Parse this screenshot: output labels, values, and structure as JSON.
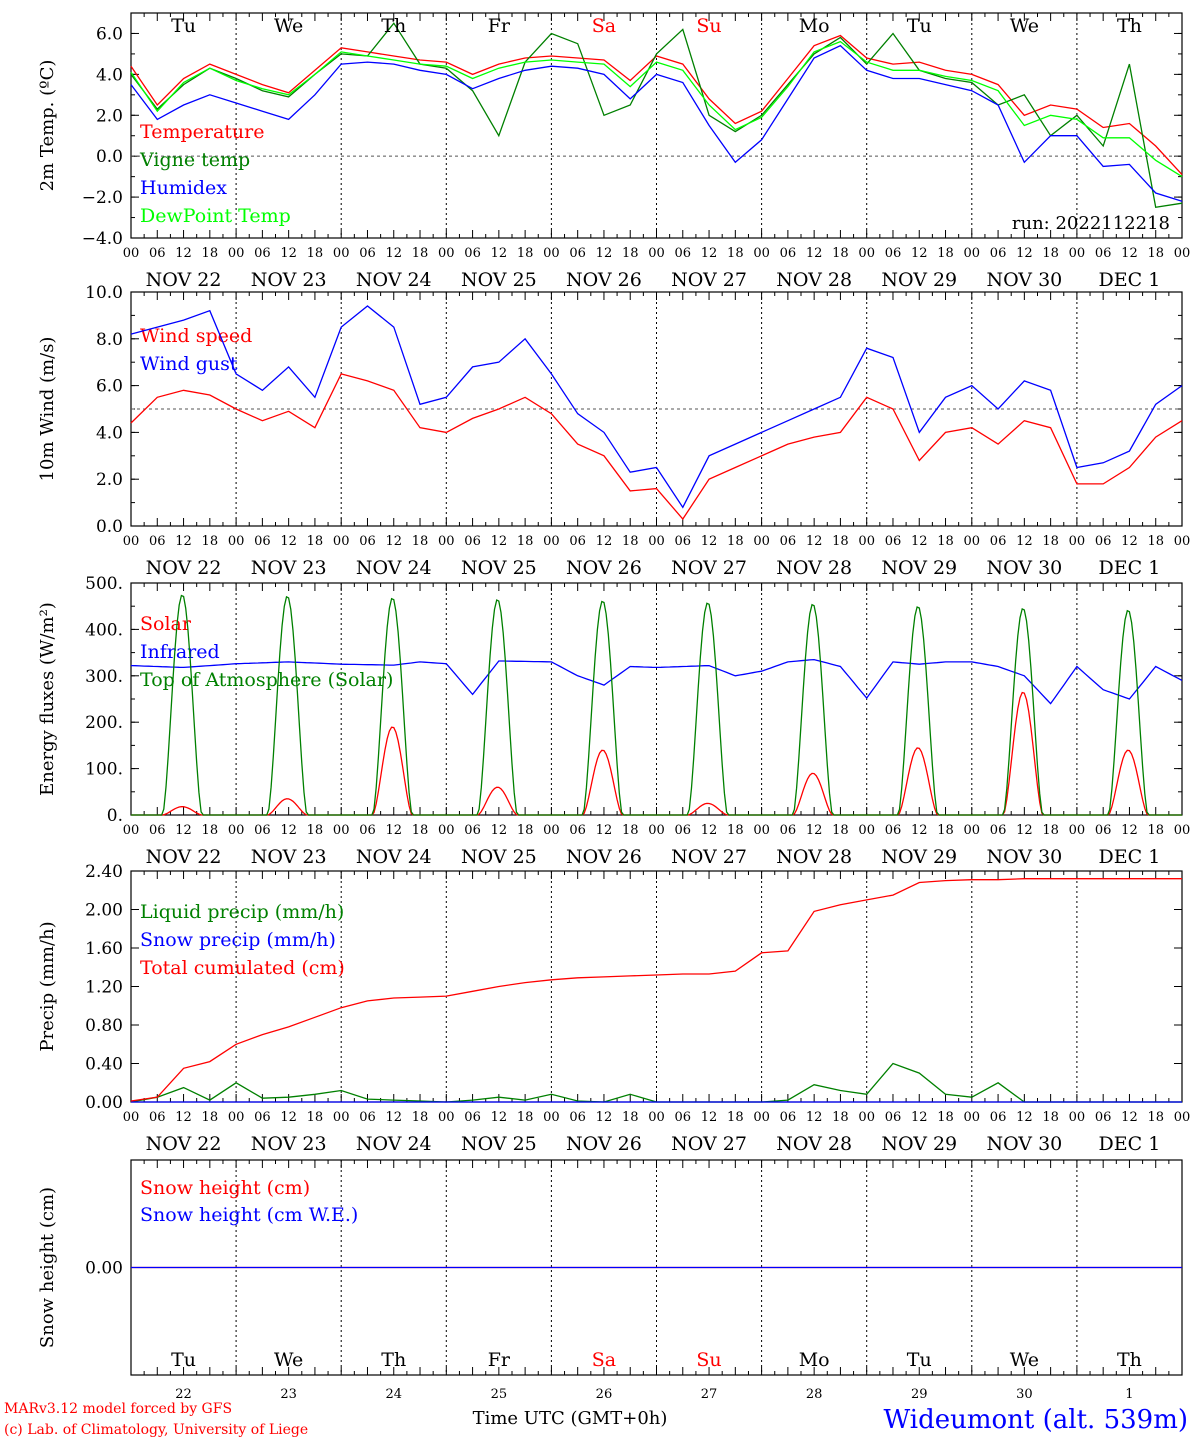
{
  "chart_data": [
    {
      "type": "line",
      "ylabel": "2m Temp. (ºC)",
      "ylim": [
        -4,
        7
      ],
      "yticks": [
        -4,
        -2,
        0,
        2,
        4,
        6
      ],
      "ytick_labels": [
        "−4.0",
        "−2.0",
        "0.0",
        "2.0",
        "4.0",
        "6.0"
      ],
      "dashed_ref": 0,
      "x_hours": [
        0,
        6,
        12,
        18,
        24,
        30,
        36,
        42,
        48,
        54,
        60,
        66,
        72,
        78,
        84,
        90,
        96,
        102,
        108,
        114,
        120,
        126,
        132,
        138,
        144,
        150,
        156,
        162,
        168,
        174,
        180,
        186,
        192,
        198,
        204,
        210,
        216,
        222,
        228,
        234,
        240
      ],
      "run_label": "run: 2022112218",
      "series": [
        {
          "name": "Temperature",
          "color": "#ff0000",
          "values": [
            4.4,
            2.5,
            3.8,
            4.5,
            4.0,
            3.5,
            3.1,
            4.2,
            5.3,
            5.1,
            4.9,
            4.7,
            4.6,
            4.0,
            4.5,
            4.8,
            4.9,
            4.8,
            4.7,
            3.7,
            4.9,
            4.5,
            2.8,
            1.6,
            2.2,
            3.8,
            5.4,
            5.9,
            4.8,
            4.5,
            4.6,
            4.2,
            4.0,
            3.5,
            2.0,
            2.5,
            2.3,
            1.4,
            1.6,
            0.5,
            -0.9
          ]
        },
        {
          "name": "Vigne temp",
          "color": "#008000",
          "values": [
            4.0,
            2.3,
            3.5,
            4.3,
            3.8,
            3.2,
            2.9,
            4.0,
            5.0,
            4.9,
            6.5,
            4.5,
            4.3,
            3.2,
            1.0,
            4.6,
            6.0,
            5.5,
            2.0,
            2.5,
            5.0,
            6.2,
            2.0,
            1.2,
            2.0,
            3.5,
            5.0,
            5.8,
            4.5,
            6.0,
            4.2,
            3.8,
            3.6,
            2.5,
            3.0,
            1.0,
            2.0,
            0.5,
            4.5,
            -2.5,
            -2.3
          ]
        },
        {
          "name": "Humidex",
          "color": "#0000ff",
          "values": [
            3.5,
            1.8,
            2.5,
            3.0,
            2.6,
            2.2,
            1.8,
            3.0,
            4.5,
            4.6,
            4.5,
            4.2,
            4.0,
            3.3,
            3.8,
            4.2,
            4.4,
            4.3,
            4.0,
            2.8,
            4.0,
            3.6,
            1.5,
            -0.3,
            0.8,
            2.8,
            4.8,
            5.4,
            4.2,
            3.8,
            3.8,
            3.5,
            3.2,
            2.5,
            -0.3,
            1.0,
            1.0,
            -0.5,
            -0.4,
            -1.8,
            -2.2
          ]
        },
        {
          "name": "DewPoint Temp",
          "color": "#00ff00",
          "values": [
            4.1,
            2.2,
            3.6,
            4.3,
            3.7,
            3.3,
            3.0,
            4.0,
            5.1,
            4.9,
            4.7,
            4.5,
            4.4,
            3.8,
            4.3,
            4.6,
            4.7,
            4.6,
            4.5,
            3.4,
            4.6,
            4.2,
            2.5,
            1.3,
            1.9,
            3.4,
            5.1,
            5.6,
            4.6,
            4.2,
            4.2,
            3.9,
            3.7,
            3.2,
            1.5,
            2.0,
            1.8,
            0.9,
            0.9,
            -0.2,
            -1.0
          ]
        }
      ]
    },
    {
      "type": "line",
      "ylabel": "10m Wind (m/s)",
      "ylim": [
        0,
        10
      ],
      "yticks": [
        0,
        2,
        4,
        6,
        8,
        10
      ],
      "ytick_labels": [
        "0.0",
        "2.0",
        "4.0",
        "6.0",
        "8.0",
        "10.0"
      ],
      "dashed_ref": 5,
      "x_hours": [
        0,
        6,
        12,
        18,
        24,
        30,
        36,
        42,
        48,
        54,
        60,
        66,
        72,
        78,
        84,
        90,
        96,
        102,
        108,
        114,
        120,
        126,
        132,
        138,
        144,
        150,
        156,
        162,
        168,
        174,
        180,
        186,
        192,
        198,
        204,
        210,
        216,
        222,
        228,
        234,
        240
      ],
      "series": [
        {
          "name": "Wind speed",
          "color": "#ff0000",
          "values": [
            4.4,
            5.5,
            5.8,
            5.6,
            5.0,
            4.5,
            4.9,
            4.2,
            6.5,
            6.2,
            5.8,
            4.2,
            4.0,
            4.6,
            5.0,
            5.5,
            4.8,
            3.5,
            3.0,
            1.5,
            1.6,
            0.3,
            2.0,
            2.5,
            3.0,
            3.5,
            3.8,
            4.0,
            5.5,
            5.0,
            2.8,
            4.0,
            4.2,
            3.5,
            4.5,
            4.2,
            1.8,
            1.8,
            2.5,
            3.8,
            4.5
          ]
        },
        {
          "name": "Wind gust",
          "color": "#0000ff",
          "values": [
            8.2,
            8.5,
            8.8,
            9.2,
            6.5,
            5.8,
            6.8,
            5.5,
            8.5,
            9.4,
            8.5,
            5.2,
            5.5,
            6.8,
            7.0,
            8.0,
            6.5,
            4.8,
            4.0,
            2.3,
            2.5,
            0.8,
            3.0,
            3.5,
            4.0,
            4.5,
            5.0,
            5.5,
            7.6,
            7.2,
            4.0,
            5.5,
            6.0,
            5.0,
            6.2,
            5.8,
            2.5,
            2.7,
            3.2,
            5.2,
            6.0
          ]
        }
      ]
    },
    {
      "type": "line",
      "ylabel": "Energy fluxes (W/m²)",
      "ylim": [
        0,
        500
      ],
      "yticks": [
        0,
        100,
        200,
        300,
        400,
        500
      ],
      "ytick_labels": [
        "0.",
        "100.",
        "200.",
        "300.",
        "400.",
        "500."
      ],
      "days": 10,
      "series": [
        {
          "name": "Solar",
          "color": "#ff0000",
          "daily_peak": [
            18,
            35,
            190,
            60,
            140,
            25,
            90,
            145,
            265,
            140
          ]
        },
        {
          "name": "Infrared",
          "color": "#0000ff",
          "values_hours": [
            0,
            12,
            24,
            36,
            48,
            60,
            66,
            72,
            78,
            84,
            96,
            102,
            108,
            114,
            120,
            132,
            138,
            144,
            150,
            156,
            162,
            168,
            174,
            180,
            186,
            192,
            198,
            204,
            210,
            216,
            222,
            228,
            234,
            240
          ],
          "values": [
            322,
            318,
            326,
            330,
            325,
            323,
            330,
            326,
            260,
            332,
            330,
            300,
            280,
            320,
            318,
            322,
            300,
            310,
            330,
            335,
            320,
            252,
            330,
            325,
            330,
            330,
            320,
            300,
            240,
            320,
            270,
            250,
            320,
            290
          ]
        },
        {
          "name": "Top of Atmosphere (Solar)",
          "color": "#008000",
          "daily_peak": [
            475,
            472,
            468,
            465,
            462,
            458,
            455,
            450,
            446,
            442
          ]
        }
      ]
    },
    {
      "type": "line",
      "ylabel": "Precip (mm/h)",
      "ylim": [
        0,
        2.4
      ],
      "yticks": [
        0,
        0.4,
        0.8,
        1.2,
        1.6,
        2.0,
        2.4
      ],
      "ytick_labels": [
        "0.00",
        "0.40",
        "0.80",
        "1.20",
        "1.60",
        "2.00",
        "2.40"
      ],
      "x_hours": [
        0,
        6,
        12,
        18,
        24,
        30,
        36,
        42,
        48,
        54,
        60,
        66,
        72,
        78,
        84,
        90,
        96,
        102,
        108,
        114,
        120,
        126,
        132,
        138,
        144,
        150,
        156,
        162,
        168,
        174,
        180,
        186,
        192,
        198,
        204,
        210,
        216,
        222,
        228,
        234,
        240
      ],
      "series": [
        {
          "name": "Liquid precip (mm/h)",
          "color": "#008000",
          "values": [
            0,
            0.05,
            0.15,
            0.02,
            0.2,
            0.04,
            0.05,
            0.08,
            0.12,
            0.03,
            0.02,
            0.01,
            0,
            0.02,
            0.05,
            0.02,
            0.08,
            0.01,
            0,
            0.08,
            0,
            0,
            0,
            0,
            0,
            0.02,
            0.18,
            0.12,
            0.08,
            0.4,
            0.3,
            0.08,
            0.05,
            0.2,
            0,
            0,
            0,
            0,
            0,
            0,
            0
          ]
        },
        {
          "name": "Snow precip (mm/h)",
          "color": "#0000ff",
          "values": [
            0,
            0,
            0,
            0,
            0,
            0,
            0,
            0,
            0,
            0,
            0,
            0,
            0,
            0,
            0,
            0,
            0,
            0,
            0,
            0,
            0,
            0,
            0,
            0,
            0,
            0,
            0,
            0,
            0,
            0,
            0,
            0,
            0,
            0,
            0,
            0,
            0,
            0,
            0,
            0,
            0
          ]
        },
        {
          "name": "Total cumulated (cm)",
          "color": "#ff0000",
          "values": [
            0.01,
            0.05,
            0.35,
            0.42,
            0.6,
            0.7,
            0.78,
            0.88,
            0.98,
            1.05,
            1.08,
            1.09,
            1.1,
            1.15,
            1.2,
            1.24,
            1.27,
            1.29,
            1.3,
            1.31,
            1.32,
            1.33,
            1.33,
            1.36,
            1.55,
            1.57,
            1.98,
            2.05,
            2.1,
            2.15,
            2.28,
            2.3,
            2.31,
            2.31,
            2.32,
            2.32,
            2.32,
            2.32,
            2.32,
            2.32,
            2.32
          ]
        }
      ]
    },
    {
      "type": "line",
      "ylabel": "Snow height (cm)",
      "ylim": [
        -1,
        1
      ],
      "yticks": [
        0
      ],
      "ytick_labels": [
        "0.00"
      ],
      "x_hours": [
        0,
        240
      ],
      "series": [
        {
          "name": "Snow height (cm)",
          "color": "#ff0000",
          "values": [
            0,
            0
          ]
        },
        {
          "name": "Snow height (cm W.E.)",
          "color": "#0000ff",
          "values": [
            0,
            0
          ]
        }
      ]
    }
  ],
  "x_axis": {
    "hour_ticks": [
      "00",
      "06",
      "12",
      "18"
    ],
    "end_tick": "00",
    "date_labels": [
      "NOV 22",
      "NOV 23",
      "NOV 24",
      "NOV 25",
      "NOV 26",
      "NOV 27",
      "NOV 28",
      "NOV 29",
      "NOV 30",
      "DEC  1"
    ],
    "weekdays": [
      "Tu",
      "We",
      "Th",
      "Fr",
      "Sa",
      "Su",
      "Mo",
      "Tu",
      "We",
      "Th"
    ],
    "weekday_colors": [
      "#000000",
      "#000000",
      "#000000",
      "#000000",
      "#ff0000",
      "#ff0000",
      "#000000",
      "#000000",
      "#000000",
      "#000000"
    ],
    "day_numbers": [
      "22",
      "23",
      "24",
      "25",
      "26",
      "27",
      "28",
      "29",
      "30",
      "1"
    ]
  },
  "footer": {
    "credit_line1": "MARv3.12 model forced by GFS",
    "credit_line2": "(c) Lab. of Climatology, University of Liege",
    "axis_title": "Time UTC (GMT+0h)",
    "station": "Wideumont (alt. 539m)",
    "credit_color": "#ff0000",
    "station_color": "#0000ff"
  }
}
